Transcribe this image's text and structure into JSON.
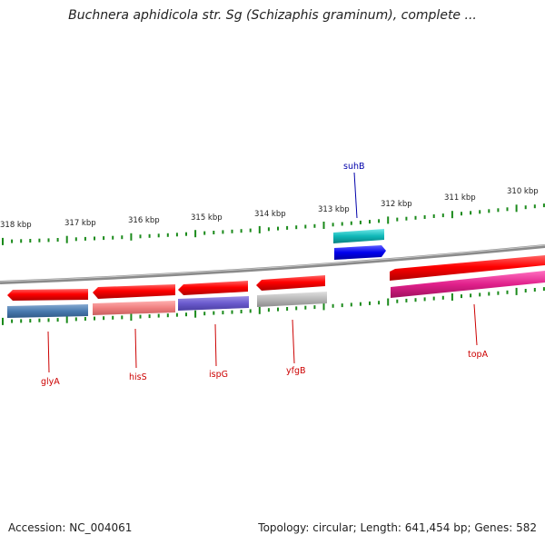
{
  "title": "Buchnera aphidicola str. Sg (Schizaphis graminum), complete ...",
  "footer": {
    "accession": "Accession: NC_004061",
    "summary": "Topology: circular; Length: 641,454 bp; Genes: 582"
  },
  "ticks": [
    "318 kbp",
    "317 kbp",
    "316 kbp",
    "315 kbp",
    "314 kbp",
    "313 kbp",
    "312 kbp",
    "311 kbp",
    "310 kbp"
  ],
  "genes": [
    {
      "name": "glyA",
      "color": "#cc0000"
    },
    {
      "name": "hisS",
      "color": "#cc0000"
    },
    {
      "name": "ispG",
      "color": "#cc0000"
    },
    {
      "name": "yfgB",
      "color": "#cc0000"
    },
    {
      "name": "topA",
      "color": "#cc0000"
    },
    {
      "name": "suhB",
      "color": "#0000aa"
    }
  ],
  "colors": {
    "backbone": "#8a8a8a",
    "tick": "#1a8a1a",
    "gene_red": "#ff0000",
    "steelblue": "#4a7bb0",
    "salmon": "#f08080",
    "slateblue": "#6a5acd",
    "silver": "#b8b8b8",
    "magenta": "#e0208a",
    "teal": "#10b8b8",
    "blue": "#0000ee"
  }
}
